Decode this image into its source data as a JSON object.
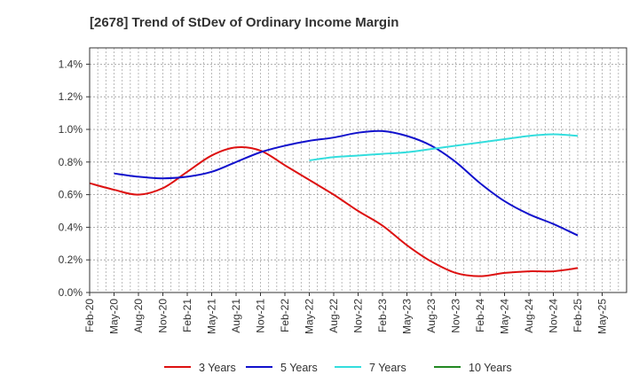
{
  "chart_data": {
    "type": "line",
    "title": "[2678]  Trend of StDev of Ordinary Income Margin",
    "xlabel": "",
    "ylabel": "",
    "x_tick_labels": [
      "Feb-20",
      "May-20",
      "Aug-20",
      "Nov-20",
      "Feb-21",
      "May-21",
      "Aug-21",
      "Nov-21",
      "Feb-22",
      "May-22",
      "Aug-22",
      "Nov-22",
      "Feb-23",
      "May-23",
      "Aug-23",
      "Nov-23",
      "Feb-24",
      "May-24",
      "Aug-24",
      "Nov-24",
      "Feb-25",
      "May-25"
    ],
    "y_tick_labels": [
      "0.0%",
      "0.2%",
      "0.4%",
      "0.6%",
      "0.8%",
      "1.0%",
      "1.2%",
      "1.4%"
    ],
    "ylim": [
      0,
      1.5
    ],
    "y_ticks": [
      0,
      0.2,
      0.4,
      0.6,
      0.8,
      1.0,
      1.2,
      1.4
    ],
    "grid": true,
    "legend_position": "bottom",
    "series": [
      {
        "name": "3 Years",
        "color": "#dd1111",
        "values": [
          0.67,
          0.63,
          0.6,
          0.64,
          0.74,
          0.84,
          0.89,
          0.87,
          0.78,
          0.69,
          0.6,
          0.5,
          0.41,
          0.29,
          0.19,
          0.12,
          0.1,
          0.12,
          0.13,
          0.13,
          0.15,
          null
        ]
      },
      {
        "name": "5 Years",
        "color": "#1111cc",
        "values": [
          null,
          0.73,
          0.71,
          0.7,
          0.71,
          0.74,
          0.8,
          0.86,
          0.9,
          0.93,
          0.95,
          0.98,
          0.99,
          0.96,
          0.9,
          0.8,
          0.67,
          0.56,
          0.48,
          0.42,
          0.35,
          null
        ]
      },
      {
        "name": "7 Years",
        "color": "#33dddd",
        "values": [
          null,
          null,
          null,
          null,
          null,
          null,
          null,
          null,
          null,
          0.81,
          0.83,
          0.84,
          0.85,
          0.86,
          0.88,
          0.9,
          0.92,
          0.94,
          0.96,
          0.97,
          0.96,
          null
        ]
      },
      {
        "name": "10 Years",
        "color": "#228822",
        "values": [
          null,
          null,
          null,
          null,
          null,
          null,
          null,
          null,
          null,
          null,
          null,
          null,
          null,
          null,
          null,
          null,
          null,
          null,
          null,
          null,
          null,
          null
        ]
      }
    ]
  }
}
